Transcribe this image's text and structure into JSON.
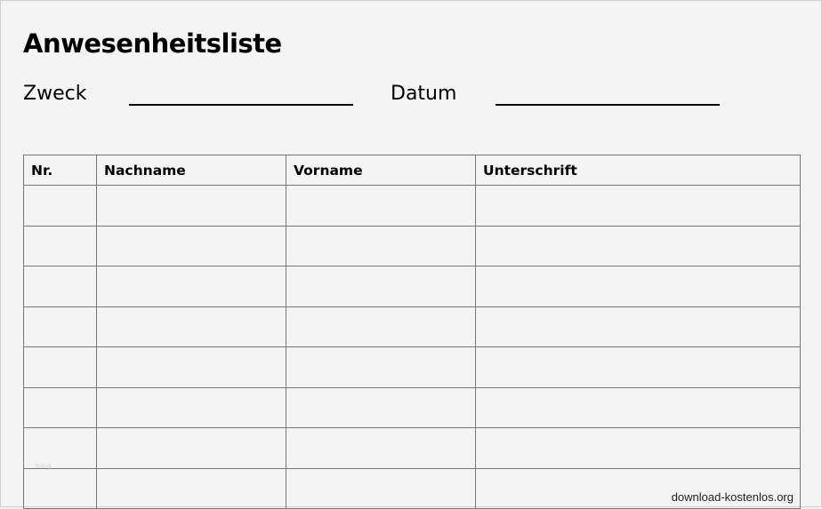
{
  "title": "Anwesenheitsliste",
  "fields": {
    "purpose_label": "Zweck",
    "date_label": "Datum"
  },
  "table": {
    "headers": [
      "Nr.",
      "Nachname",
      "Vorname",
      "Unterschrift"
    ],
    "row_count_visible": 8
  },
  "watermark": "blog",
  "source": "download-kostenlos.org"
}
